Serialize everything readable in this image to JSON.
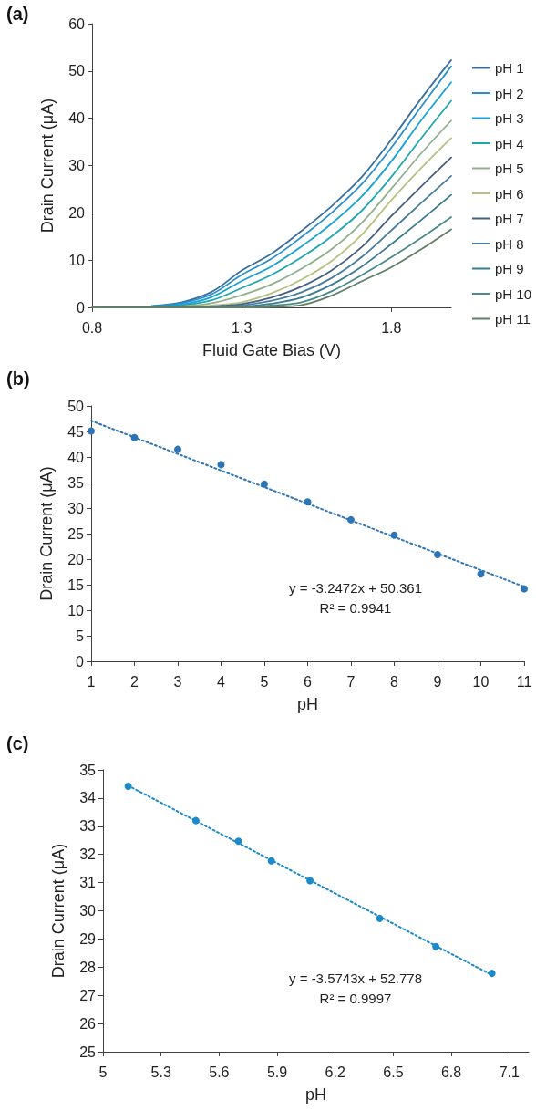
{
  "chart_data": [
    {
      "type": "line",
      "title": "(a)",
      "xlabel": "Fluid Gate Bias (V)",
      "ylabel": "Drain Current (μA)",
      "marker": "none",
      "legend": "right",
      "x": [
        0.8,
        0.9,
        1.0,
        1.1,
        1.2,
        1.3,
        1.4,
        1.5,
        1.6,
        1.7,
        1.8,
        1.9,
        2.0
      ],
      "xlim": [
        0.8,
        2.0
      ],
      "xticks": [
        0.8,
        1.3,
        1.8
      ],
      "ylim": [
        0,
        60
      ],
      "yticks": [
        0,
        10,
        20,
        30,
        40,
        50,
        60
      ],
      "series": [
        {
          "name": "pH 1",
          "color": "#3a6fa0",
          "values": [
            null,
            null,
            0.3,
            1.1,
            3.3,
            7.8,
            11.4,
            16.2,
            21.4,
            27.5,
            35.5,
            44.2,
            52.3
          ]
        },
        {
          "name": "pH 2",
          "color": "#2a8fcf",
          "values": [
            null,
            null,
            0.2,
            0.9,
            2.8,
            6.9,
            10.3,
            14.9,
            20.0,
            26.0,
            33.8,
            42.5,
            51.0
          ]
        },
        {
          "name": "pH 3",
          "color": "#16a2d6",
          "values": [
            null,
            null,
            0.1,
            0.6,
            2.2,
            5.6,
            8.7,
            12.9,
            17.7,
            23.4,
            30.9,
            39.6,
            47.6
          ]
        },
        {
          "name": "pH 4",
          "color": "#20a6b0",
          "values": [
            null,
            null,
            0.1,
            0.4,
            1.5,
            4.1,
            6.9,
            10.6,
            15.0,
            20.4,
            27.6,
            35.8,
            43.7
          ]
        },
        {
          "name": "pH 5",
          "color": "#8fb08a",
          "values": [
            null,
            null,
            null,
            0.2,
            0.9,
            2.6,
            4.9,
            8.2,
            12.3,
            17.8,
            25.1,
            32.6,
            39.5
          ]
        },
        {
          "name": "pH 6",
          "color": "#b8c080",
          "values": [
            null,
            null,
            null,
            0.1,
            0.4,
            1.1,
            3.0,
            5.9,
            9.8,
            15.3,
            22.7,
            29.5,
            35.8
          ]
        },
        {
          "name": "pH 7",
          "color": "#45607f",
          "values": [
            null,
            null,
            null,
            null,
            0.2,
            0.7,
            2.1,
            4.4,
            7.8,
            12.7,
            19.3,
            25.6,
            31.7
          ]
        },
        {
          "name": "pH 8",
          "color": "#4a7ca0",
          "values": [
            null,
            null,
            null,
            null,
            0.1,
            0.4,
            1.4,
            3.2,
            6.2,
            10.6,
            16.3,
            22.1,
            27.8
          ]
        },
        {
          "name": "pH 9",
          "color": "#3a7a90",
          "values": [
            null,
            null,
            null,
            null,
            null,
            0.2,
            0.8,
            2.1,
            4.8,
            8.6,
            13.4,
            18.5,
            23.8
          ]
        },
        {
          "name": "pH 10",
          "color": "#4a8a8a",
          "values": [
            null,
            null,
            null,
            null,
            null,
            0.1,
            0.4,
            1.1,
            3.4,
            6.8,
            10.6,
            14.7,
            19.1
          ]
        },
        {
          "name": "pH 11",
          "color": "#5f7f66",
          "values": [
            0,
            0,
            0,
            0,
            0,
            0,
            0.1,
            0.5,
            2.5,
            5.5,
            8.5,
            12.3,
            16.5
          ]
        }
      ]
    },
    {
      "type": "scatter",
      "title": "(b)",
      "xlabel": "pH",
      "ylabel": "Drain Current (μA)",
      "marker": "circle",
      "xlim": [
        1,
        11
      ],
      "xticks": [
        1,
        2,
        3,
        4,
        5,
        6,
        7,
        8,
        9,
        10,
        11
      ],
      "ylim": [
        0,
        50
      ],
      "yticks": [
        0,
        5,
        10,
        15,
        20,
        25,
        30,
        35,
        40,
        45,
        50
      ],
      "annotations": [
        "y = -3.2472x + 50.361",
        "R² = 0.9941"
      ],
      "series": [
        {
          "color": "#2e75b6",
          "x": [
            1,
            2,
            3,
            4,
            5,
            6,
            7,
            8,
            9,
            10,
            11
          ],
          "values": [
            45.1,
            43.8,
            41.5,
            38.5,
            34.7,
            31.2,
            27.7,
            24.7,
            20.9,
            17.1,
            14.2
          ]
        },
        {
          "type": "line",
          "line_style": "dotted",
          "marker": "none",
          "color": "#2e75b6",
          "x": [
            1,
            11
          ],
          "values": [
            47.1,
            14.6
          ]
        }
      ]
    },
    {
      "type": "scatter",
      "title": "(c)",
      "xlabel": "pH",
      "ylabel": "Drain Current (μA)",
      "marker": "circle",
      "xlim": [
        5,
        7.2
      ],
      "xticks": [
        5,
        5.3,
        5.6,
        5.9,
        6.2,
        6.5,
        6.8,
        7.1
      ],
      "ylim": [
        25,
        35
      ],
      "yticks": [
        25,
        26,
        27,
        28,
        29,
        30,
        31,
        32,
        33,
        34,
        35
      ],
      "annotations": [
        "y = -3.5743x + 52.778",
        "R² = 0.9997"
      ],
      "series": [
        {
          "color": "#1a8ac8",
          "x": [
            5.13,
            5.48,
            5.7,
            5.87,
            6.07,
            6.43,
            6.72,
            7.01
          ],
          "values": [
            34.42,
            33.2,
            32.47,
            31.77,
            31.07,
            29.73,
            28.73,
            27.78
          ]
        },
        {
          "type": "line",
          "line_style": "dotted",
          "marker": "none",
          "color": "#1a8ac8",
          "x": [
            5.13,
            7.01
          ],
          "values": [
            34.44,
            27.72
          ]
        }
      ]
    }
  ]
}
